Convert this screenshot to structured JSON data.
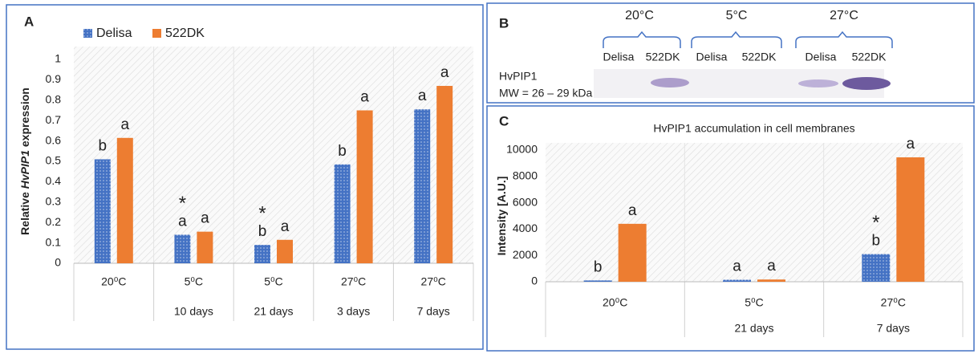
{
  "chart_data": [
    {
      "type": "bar",
      "panel": "A",
      "ylabel": [
        "Relative ",
        "HvPIP1",
        " expression"
      ],
      "categories": [
        "20⁰C",
        "5⁰C",
        "5⁰C",
        "27⁰C",
        "27⁰C"
      ],
      "sublabels": [
        null,
        "10 days",
        "21 days",
        "3 days",
        "7 days"
      ],
      "series": [
        {
          "name": "Delisa",
          "color": "#4472c4",
          "values": [
            0.51,
            0.14,
            0.09,
            0.485,
            0.755
          ],
          "letters": [
            "b",
            "a",
            "b",
            "b",
            "a"
          ],
          "asterisks": [
            null,
            "*",
            "*",
            null,
            null
          ]
        },
        {
          "name": "522DK",
          "color": "#ed7d31",
          "values": [
            0.615,
            0.155,
            0.115,
            0.75,
            0.87
          ],
          "letters": [
            "a",
            "a",
            "a",
            "a",
            "a"
          ]
        }
      ],
      "ylim": [
        0,
        1
      ],
      "yticks": [
        0,
        0.1,
        0.2,
        0.3,
        0.4,
        0.5,
        0.6,
        0.7,
        0.8,
        0.9,
        1
      ],
      "legend": "top-left"
    },
    {
      "type": "bar",
      "panel": "C",
      "title": "HvPIP1 accumulation in cell membranes",
      "ylabel": [
        "Intensity [A.U.]"
      ],
      "categories": [
        "20⁰C",
        "5⁰C",
        "27⁰C"
      ],
      "sublabels": [
        null,
        "21 days",
        "7 days"
      ],
      "series": [
        {
          "color": "#4472c4",
          "values": [
            100,
            150,
            2100
          ],
          "letters": [
            "b",
            "a",
            "b"
          ],
          "asterisks": [
            null,
            null,
            "*"
          ]
        },
        {
          "color": "#ed7d31",
          "values": [
            4400,
            170,
            9450
          ],
          "letters": [
            "a",
            "a",
            "a"
          ]
        }
      ],
      "ylim": [
        0,
        10000
      ],
      "yticks": [
        0,
        2000,
        4000,
        6000,
        8000,
        10000
      ]
    }
  ],
  "blot": {
    "panel": "B",
    "groups": [
      {
        "temp": "20°C",
        "lanes": [
          "Delisa",
          "522DK"
        ]
      },
      {
        "temp": "5°C",
        "lanes": [
          "Delisa",
          "522DK"
        ]
      },
      {
        "temp": "27°C",
        "lanes": [
          "Delisa",
          "522DK"
        ]
      }
    ],
    "protein": "HvPIP1",
    "mw": "MW = 26 – 29 kDa"
  }
}
